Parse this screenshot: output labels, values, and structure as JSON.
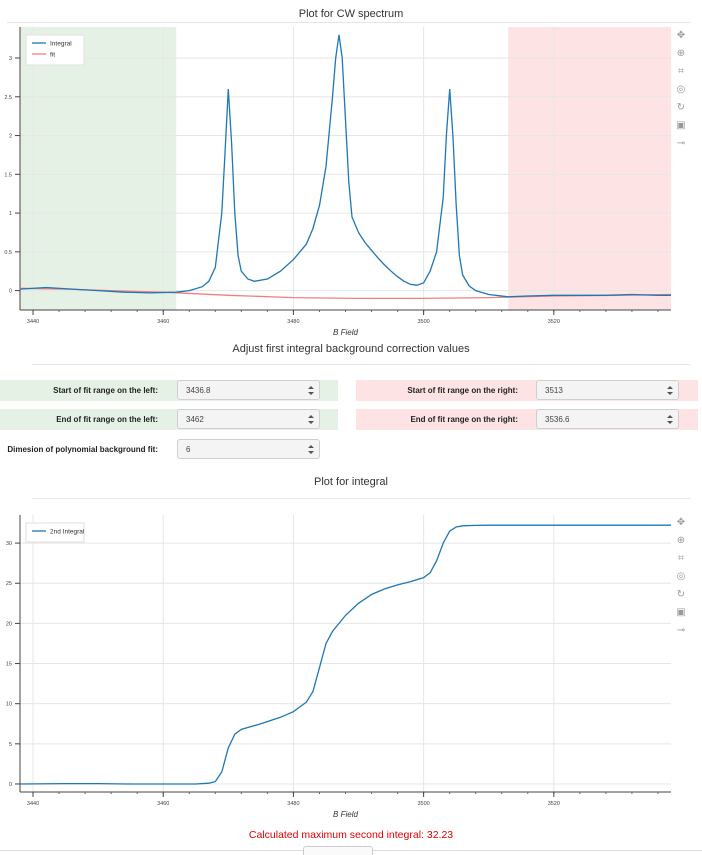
{
  "plot1": {
    "title": "Plot for CW spectrum",
    "xlabel": "B Field",
    "legend": [
      {
        "label": "Integral",
        "color": "#1f77b4"
      },
      {
        "label": "fit",
        "color": "#f08080"
      }
    ],
    "x_ticks": [
      "3440",
      "3460",
      "3480",
      "3500",
      "3520"
    ],
    "y_ticks": [
      "0",
      "0.5",
      "1",
      "1.5",
      "2",
      "2.5",
      "3"
    ]
  },
  "controls": {
    "title": "Adjust first integral background correction values",
    "start_left_label": "Start of fit range on the left:",
    "start_left_value": "3436.8",
    "end_left_label": "End of fit range on the left:",
    "end_left_value": "3462",
    "start_right_label": "Start of fit range on the right:",
    "start_right_value": "3513",
    "end_right_label": "End of fit range on the right:",
    "end_right_value": "3536.6",
    "poly_label": "Dimesion of polynomial background fit:",
    "poly_value": "6"
  },
  "plot2": {
    "title": "Plot for integral",
    "xlabel": "B Field",
    "legend": [
      {
        "label": "2nd Integral",
        "color": "#1f77b4"
      }
    ],
    "x_ticks": [
      "3440",
      "3460",
      "3480",
      "3500",
      "3520"
    ],
    "y_ticks": [
      "0",
      "5",
      "10",
      "15",
      "20",
      "25",
      "30"
    ]
  },
  "result": "Calculated maximum second integral: 32.23",
  "colors": {
    "line": "#1f77b4",
    "fit": "#f08080",
    "left_region": "#e5f1e5",
    "right_region": "#fde3e3",
    "result": "#e00000"
  },
  "toolbar_icons": [
    "pan-icon",
    "box-zoom-icon",
    "box-select-icon",
    "wheel-zoom-icon",
    "reset-icon",
    "save-icon",
    "hover-icon"
  ],
  "chart_data": [
    {
      "type": "line",
      "title": "Plot for CW spectrum",
      "xlabel": "B Field",
      "xlim": [
        3438,
        3538
      ],
      "ylim": [
        -0.25,
        3.4
      ],
      "grid": true,
      "legend_position": "top-left",
      "shaded_regions": [
        {
          "from": 3436.8,
          "to": 3462,
          "color": "#e5f1e5"
        },
        {
          "from": 3513,
          "to": 3538,
          "color": "#fde3e3"
        }
      ],
      "series": [
        {
          "name": "Integral",
          "color": "#1f77b4",
          "x": [
            3438,
            3442,
            3446,
            3450,
            3454,
            3458,
            3462,
            3464,
            3466,
            3467,
            3468,
            3469,
            3469.5,
            3470,
            3470.5,
            3471,
            3471.5,
            3472,
            3473,
            3474,
            3476,
            3478,
            3480,
            3482,
            3483,
            3484,
            3485,
            3486,
            3486.5,
            3487,
            3487.5,
            3488,
            3488.5,
            3489,
            3490,
            3491,
            3492,
            3493,
            3494,
            3495,
            3496,
            3497,
            3498,
            3499,
            3500,
            3501,
            3502,
            3503,
            3503.5,
            3504,
            3504.5,
            3505,
            3505.5,
            3506,
            3507,
            3508,
            3510,
            3513,
            3516,
            3520,
            3524,
            3528,
            3532,
            3536,
            3538
          ],
          "y": [
            0.02,
            0.04,
            0.02,
            0.0,
            -0.02,
            -0.03,
            -0.02,
            0.0,
            0.05,
            0.12,
            0.3,
            1.0,
            1.8,
            2.6,
            1.9,
            1.0,
            0.45,
            0.25,
            0.15,
            0.12,
            0.15,
            0.25,
            0.4,
            0.6,
            0.8,
            1.1,
            1.6,
            2.5,
            3.0,
            3.3,
            3.0,
            2.2,
            1.4,
            0.95,
            0.75,
            0.62,
            0.52,
            0.42,
            0.33,
            0.25,
            0.18,
            0.12,
            0.08,
            0.07,
            0.1,
            0.25,
            0.5,
            1.2,
            2.0,
            2.6,
            2.0,
            1.1,
            0.45,
            0.2,
            0.06,
            0.0,
            -0.05,
            -0.08,
            -0.07,
            -0.06,
            -0.06,
            -0.06,
            -0.05,
            -0.06,
            -0.06
          ]
        },
        {
          "name": "fit",
          "color": "#f08080",
          "x": [
            3438,
            3445,
            3452,
            3460,
            3470,
            3480,
            3490,
            3500,
            3510,
            3520,
            3530,
            3538
          ],
          "y": [
            0.03,
            0.02,
            0.0,
            -0.02,
            -0.06,
            -0.09,
            -0.1,
            -0.1,
            -0.09,
            -0.07,
            -0.06,
            -0.05
          ]
        }
      ]
    },
    {
      "type": "line",
      "title": "Plot for integral",
      "xlabel": "B Field",
      "xlim": [
        3438,
        3538
      ],
      "ylim": [
        -1,
        33.5
      ],
      "grid": true,
      "legend_position": "top-left",
      "series": [
        {
          "name": "2nd Integral",
          "color": "#1f77b4",
          "x": [
            3438,
            3445,
            3450,
            3455,
            3460,
            3465,
            3467,
            3468,
            3469,
            3470,
            3471,
            3472,
            3475,
            3478,
            3480,
            3482,
            3483,
            3484,
            3485,
            3486,
            3487,
            3488,
            3490,
            3492,
            3494,
            3496,
            3498,
            3500,
            3501,
            3502,
            3503,
            3504,
            3505,
            3506,
            3508,
            3510,
            3515,
            3520,
            3530,
            3538
          ],
          "y": [
            0,
            0.05,
            0.05,
            0,
            0,
            0,
            0.1,
            0.3,
            1.5,
            4.5,
            6.2,
            6.8,
            7.5,
            8.3,
            9.0,
            10.2,
            11.5,
            14.5,
            17.5,
            19.0,
            20.0,
            21.0,
            22.5,
            23.6,
            24.3,
            24.8,
            25.2,
            25.7,
            26.3,
            27.8,
            30.0,
            31.5,
            32.0,
            32.15,
            32.2,
            32.23,
            32.23,
            32.23,
            32.23,
            32.23
          ]
        }
      ]
    }
  ]
}
